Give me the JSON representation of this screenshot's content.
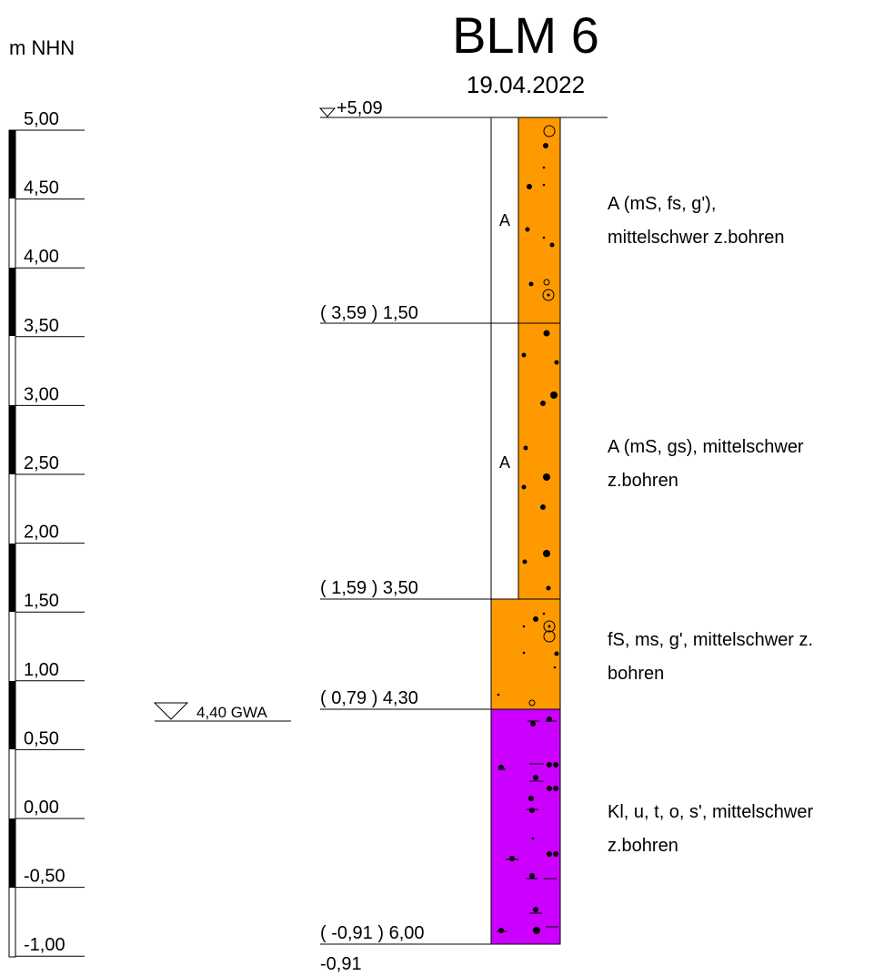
{
  "header": {
    "title": "BLM 6",
    "date": "19.04.2022",
    "unit_label": "m NHN"
  },
  "scale": {
    "labels": [
      "5,00",
      "4,50",
      "4,00",
      "3,50",
      "3,00",
      "2,50",
      "2,00",
      "1,50",
      "1,00",
      "0,50",
      "0,00",
      "-0,50",
      "-1,00"
    ]
  },
  "top_marker": "+5,09",
  "bottom_label": "-0,91",
  "groundwater": {
    "label": "4,40 GWA"
  },
  "layers": [
    {
      "depth_label": "( 3,59 ) 1,50",
      "letter": "A",
      "color": "#ff9900",
      "description": [
        "A (mS, fs, g'),",
        "mittelschwer z.bohren"
      ]
    },
    {
      "depth_label": "( 1,59 ) 3,50",
      "letter": "A",
      "color": "#ff9900",
      "description": [
        "A (mS, gs), mittelschwer",
        "z.bohren"
      ]
    },
    {
      "depth_label": "( 0,79 ) 4,30",
      "letter": "",
      "color": "#ff9900",
      "description": [
        "fS, ms, g', mittelschwer z.",
        "bohren"
      ]
    },
    {
      "depth_label": "( -0,91 ) 6,00",
      "letter": "",
      "color": "#cc00ff",
      "description": [
        "Kl, u, t, o, s', mittelschwer",
        "z.bohren"
      ]
    }
  ]
}
